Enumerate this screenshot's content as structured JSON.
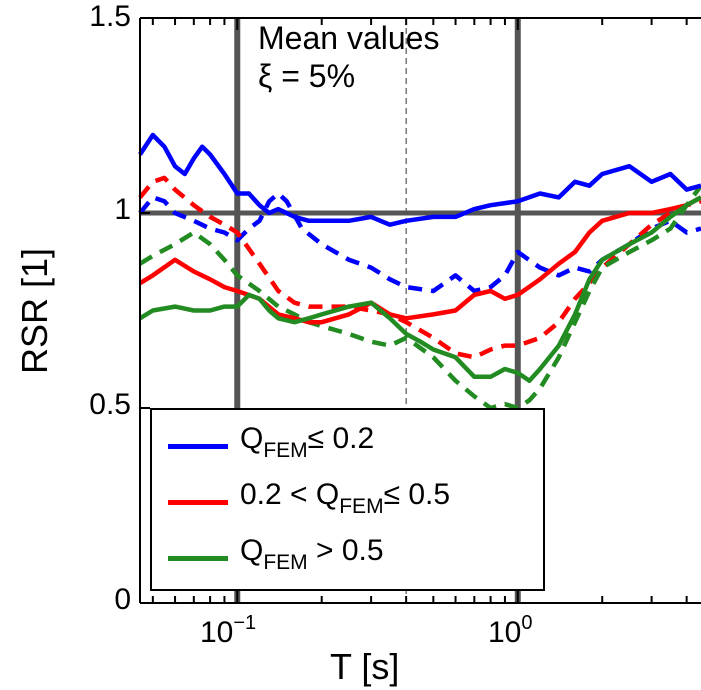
{
  "chart_data": {
    "type": "line",
    "xscale": "log",
    "xlim": [
      0.045,
      4.5
    ],
    "ylim": [
      0,
      1.5
    ],
    "xlabel": "T [s]",
    "ylabel": "RSR [1]",
    "yticks": [
      "0",
      "0.5",
      "1",
      "1.5"
    ],
    "xticks": [
      {
        "base": "10",
        "exp": "−1",
        "value": 0.1
      },
      {
        "base": "10",
        "exp": "0",
        "value": 1
      }
    ],
    "annotations": [
      "Mean values",
      "ξ = 5%"
    ],
    "reference_lines": {
      "x": [
        0.1,
        1
      ],
      "x_dashed": [
        0.4
      ],
      "y": [
        1
      ]
    },
    "legend": [
      {
        "prefix": "Q",
        "sub": "FEM",
        "suffix": "≤ 0.2",
        "color": "#0000ff"
      },
      {
        "prefix": "0.2 < Q",
        "sub": "FEM",
        "suffix": "≤ 0.5",
        "color": "#ff0000"
      },
      {
        "prefix": "Q",
        "sub": "FEM",
        "suffix": " > 0.5",
        "color": "#228b22"
      }
    ],
    "series": [
      {
        "color": "#0000ff",
        "dash": false,
        "x": [
          0.045,
          0.05,
          0.055,
          0.06,
          0.065,
          0.07,
          0.075,
          0.08,
          0.09,
          0.1,
          0.11,
          0.12,
          0.13,
          0.14,
          0.16,
          0.18,
          0.2,
          0.25,
          0.3,
          0.35,
          0.4,
          0.5,
          0.6,
          0.7,
          0.8,
          1.0,
          1.2,
          1.4,
          1.6,
          1.8,
          2.0,
          2.5,
          3.0,
          3.5,
          4.0,
          4.5
        ],
        "y": [
          1.15,
          1.2,
          1.17,
          1.12,
          1.1,
          1.14,
          1.17,
          1.15,
          1.1,
          1.05,
          1.05,
          1.02,
          1.0,
          1.01,
          0.99,
          0.98,
          0.98,
          0.98,
          0.99,
          0.97,
          0.98,
          0.99,
          0.99,
          1.01,
          1.02,
          1.03,
          1.05,
          1.04,
          1.08,
          1.07,
          1.1,
          1.12,
          1.08,
          1.1,
          1.06,
          1.07
        ]
      },
      {
        "color": "#0000ff",
        "dash": true,
        "x": [
          0.045,
          0.05,
          0.055,
          0.06,
          0.07,
          0.08,
          0.09,
          0.1,
          0.11,
          0.12,
          0.13,
          0.14,
          0.15,
          0.17,
          0.2,
          0.25,
          0.3,
          0.35,
          0.4,
          0.5,
          0.6,
          0.7,
          0.8,
          0.9,
          1.0,
          1.2,
          1.4,
          1.6,
          1.8,
          2.0,
          2.5,
          3.0,
          3.5,
          4.0,
          4.5
        ],
        "y": [
          1.0,
          1.04,
          1.03,
          1.0,
          0.98,
          0.96,
          0.95,
          0.93,
          0.96,
          0.98,
          1.03,
          1.05,
          1.03,
          0.96,
          0.92,
          0.88,
          0.86,
          0.83,
          0.81,
          0.8,
          0.84,
          0.8,
          0.81,
          0.84,
          0.9,
          0.86,
          0.84,
          0.86,
          0.85,
          0.88,
          0.92,
          0.96,
          0.98,
          0.95,
          0.96
        ]
      },
      {
        "color": "#ff0000",
        "dash": false,
        "x": [
          0.045,
          0.05,
          0.06,
          0.07,
          0.08,
          0.09,
          0.1,
          0.12,
          0.14,
          0.16,
          0.18,
          0.2,
          0.25,
          0.3,
          0.35,
          0.4,
          0.5,
          0.6,
          0.7,
          0.8,
          0.9,
          1.0,
          1.2,
          1.4,
          1.6,
          1.8,
          2.0,
          2.5,
          3.0,
          3.5,
          4.0,
          4.5
        ],
        "y": [
          0.82,
          0.84,
          0.88,
          0.85,
          0.83,
          0.81,
          0.8,
          0.78,
          0.74,
          0.73,
          0.72,
          0.72,
          0.74,
          0.77,
          0.74,
          0.73,
          0.74,
          0.75,
          0.79,
          0.8,
          0.78,
          0.79,
          0.83,
          0.87,
          0.9,
          0.95,
          0.98,
          1.0,
          1.0,
          1.01,
          1.02,
          1.04
        ]
      },
      {
        "color": "#ff0000",
        "dash": true,
        "x": [
          0.045,
          0.05,
          0.055,
          0.06,
          0.07,
          0.08,
          0.09,
          0.1,
          0.12,
          0.14,
          0.16,
          0.18,
          0.2,
          0.25,
          0.3,
          0.35,
          0.4,
          0.5,
          0.6,
          0.7,
          0.8,
          0.9,
          1.0,
          1.2,
          1.4,
          1.6,
          1.8,
          2.0,
          2.5,
          3.0,
          3.5,
          4.0,
          4.5
        ],
        "y": [
          1.04,
          1.08,
          1.09,
          1.06,
          1.02,
          0.99,
          0.97,
          0.95,
          0.87,
          0.8,
          0.77,
          0.76,
          0.76,
          0.76,
          0.75,
          0.74,
          0.72,
          0.68,
          0.64,
          0.63,
          0.65,
          0.66,
          0.66,
          0.68,
          0.72,
          0.78,
          0.82,
          0.86,
          0.92,
          0.97,
          1.0,
          1.02,
          1.03
        ]
      },
      {
        "color": "#228b22",
        "dash": false,
        "x": [
          0.045,
          0.05,
          0.06,
          0.07,
          0.08,
          0.09,
          0.1,
          0.11,
          0.12,
          0.13,
          0.14,
          0.16,
          0.18,
          0.2,
          0.25,
          0.3,
          0.35,
          0.4,
          0.45,
          0.5,
          0.6,
          0.7,
          0.8,
          0.9,
          1.0,
          1.1,
          1.2,
          1.4,
          1.6,
          1.8,
          2.0,
          2.5,
          3.0,
          3.5,
          4.0,
          4.5
        ],
        "y": [
          0.73,
          0.75,
          0.76,
          0.75,
          0.75,
          0.76,
          0.76,
          0.79,
          0.78,
          0.75,
          0.73,
          0.72,
          0.73,
          0.74,
          0.76,
          0.77,
          0.73,
          0.69,
          0.67,
          0.65,
          0.63,
          0.58,
          0.58,
          0.6,
          0.59,
          0.57,
          0.6,
          0.66,
          0.74,
          0.83,
          0.88,
          0.92,
          0.95,
          0.99,
          1.02,
          1.04
        ]
      },
      {
        "color": "#228b22",
        "dash": true,
        "x": [
          0.045,
          0.05,
          0.06,
          0.07,
          0.08,
          0.09,
          0.1,
          0.12,
          0.14,
          0.16,
          0.18,
          0.2,
          0.25,
          0.3,
          0.35,
          0.4,
          0.5,
          0.6,
          0.7,
          0.8,
          0.9,
          1.0,
          1.1,
          1.2,
          1.4,
          1.6,
          1.8,
          2.0,
          2.5,
          3.0,
          3.5,
          4.0,
          4.5
        ],
        "y": [
          0.87,
          0.89,
          0.92,
          0.95,
          0.92,
          0.88,
          0.84,
          0.8,
          0.76,
          0.74,
          0.72,
          0.71,
          0.69,
          0.67,
          0.66,
          0.68,
          0.63,
          0.57,
          0.53,
          0.5,
          0.51,
          0.5,
          0.52,
          0.55,
          0.63,
          0.72,
          0.8,
          0.86,
          0.9,
          0.93,
          0.96,
          1.02,
          1.07
        ]
      }
    ]
  }
}
